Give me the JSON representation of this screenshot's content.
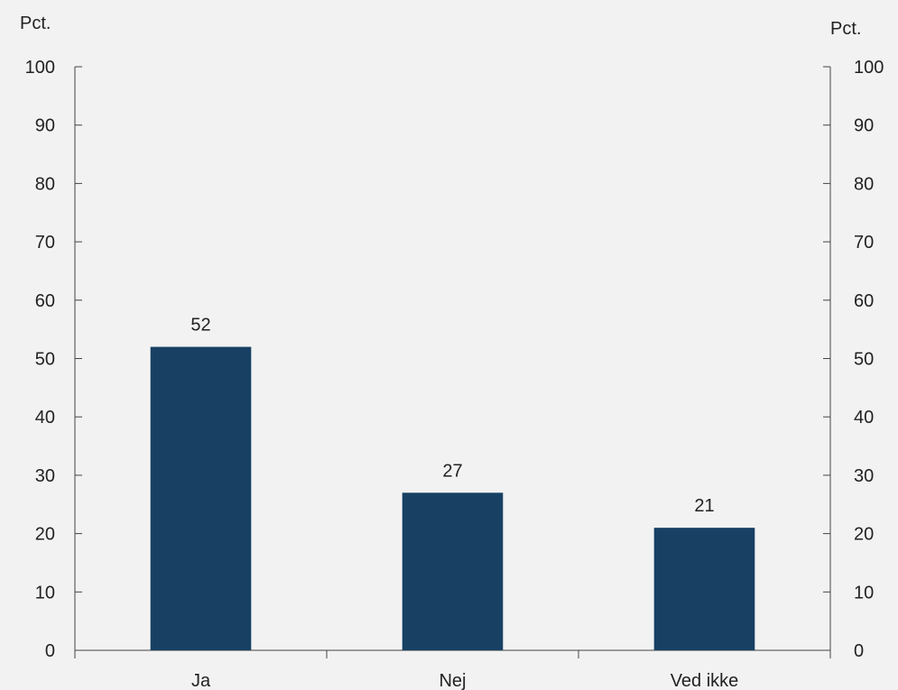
{
  "chart_data": {
    "type": "bar",
    "categories": [
      "Ja",
      "Nej",
      "Ved ikke"
    ],
    "values": [
      52,
      27,
      21
    ],
    "data_labels": [
      "52",
      "27",
      "21"
    ],
    "ylabel_left": "Pct.",
    "ylabel_right": "Pct.",
    "ylim": [
      0,
      100
    ],
    "yticks": [
      0,
      10,
      20,
      30,
      40,
      50,
      60,
      70,
      80,
      90,
      100
    ],
    "bar_color": "#174063",
    "background": "#f2f2f2",
    "axis_color": "#444444",
    "grid": false
  }
}
